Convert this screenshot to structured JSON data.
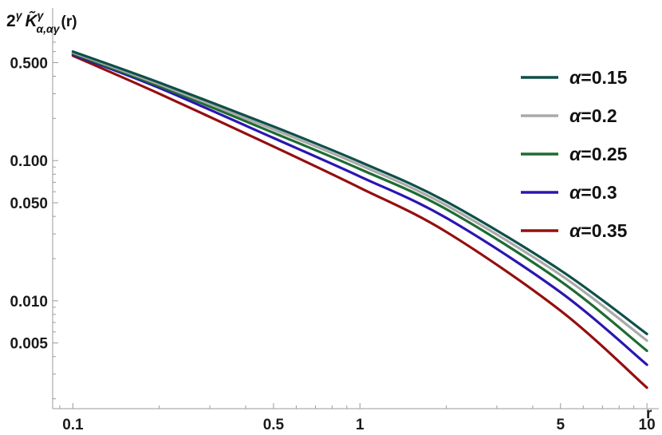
{
  "chart_data": {
    "type": "line",
    "title": "",
    "ylabel_main": "2",
    "ylabel_sup": "γ",
    "ylabel_func": "K̃",
    "ylabel_func_sup": "γ",
    "ylabel_sub": "α,αγ",
    "ylabel_arg": "(r)",
    "xlabel": "r",
    "xscale": "log",
    "yscale": "log",
    "xlim": [
      0.085,
      11
    ],
    "ylim": [
      0.0017,
      0.85
    ],
    "x_ticks": [
      {
        "value": 0.1,
        "label": "0.1"
      },
      {
        "value": 0.5,
        "label": "0.5"
      },
      {
        "value": 1,
        "label": "1"
      },
      {
        "value": 5,
        "label": "5"
      },
      {
        "value": 10,
        "label": "10"
      }
    ],
    "y_ticks": [
      {
        "value": 0.5,
        "label": "0.500"
      },
      {
        "value": 0.1,
        "label": "0.100"
      },
      {
        "value": 0.05,
        "label": "0.050"
      },
      {
        "value": 0.01,
        "label": "0.010"
      },
      {
        "value": 0.005,
        "label": "0.005"
      }
    ],
    "x": [
      0.1,
      0.2,
      0.5,
      1,
      2,
      5,
      10
    ],
    "series": [
      {
        "name": "α=0.15",
        "label_prefix": "α",
        "label_value": "=0.15",
        "color": "#0f4f49",
        "values": [
          0.6,
          0.36,
          0.175,
          0.098,
          0.051,
          0.0165,
          0.0058
        ]
      },
      {
        "name": "α=0.2",
        "label_prefix": "α",
        "label_value": "=0.2",
        "color": "#aaaaaa",
        "values": [
          0.59,
          0.35,
          0.167,
          0.093,
          0.048,
          0.0153,
          0.0052
        ]
      },
      {
        "name": "α=0.25",
        "label_prefix": "α",
        "label_value": "=0.25",
        "color": "#1e6b32",
        "values": [
          0.58,
          0.34,
          0.158,
          0.087,
          0.045,
          0.0138,
          0.0044
        ]
      },
      {
        "name": "α=0.3",
        "label_prefix": "α",
        "label_value": "=0.3",
        "color": "#2a16b0",
        "values": [
          0.57,
          0.33,
          0.145,
          0.077,
          0.039,
          0.0115,
          0.0035
        ]
      },
      {
        "name": "α=0.35",
        "label_prefix": "α",
        "label_value": "=0.35",
        "color": "#950e0e",
        "values": [
          0.56,
          0.3,
          0.126,
          0.064,
          0.031,
          0.0085,
          0.0024
        ]
      }
    ],
    "legend_position": "top-right",
    "grid": false
  }
}
